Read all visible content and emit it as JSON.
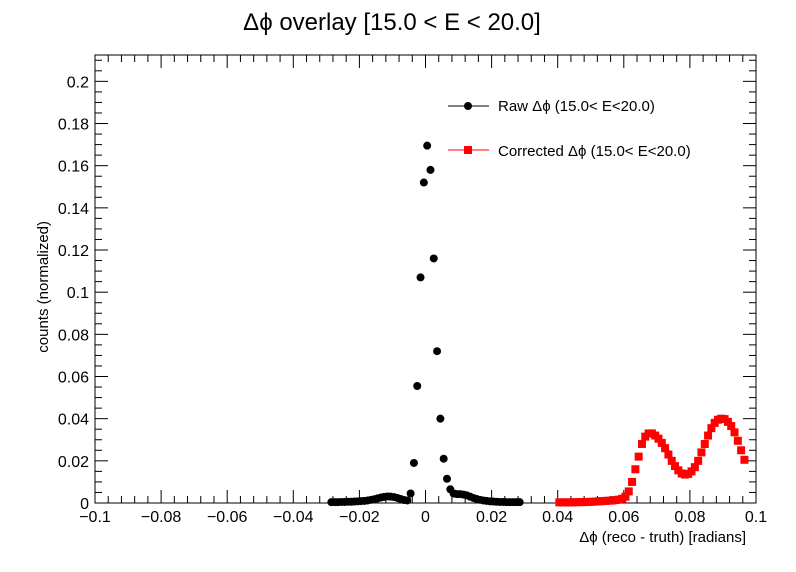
{
  "chart_data": {
    "type": "scatter",
    "title": "Δϕ overlay [15.0 < E < 20.0]",
    "xlabel": "Δϕ (reco - truth) [radians]",
    "ylabel": "counts (normalized)",
    "xlim": [
      -0.1,
      0.1
    ],
    "ylim": [
      0,
      0.2125
    ],
    "x_ticks": [
      -0.1,
      -0.08,
      -0.06,
      -0.04,
      -0.02,
      0,
      0.02,
      0.04,
      0.06,
      0.08,
      0.1
    ],
    "x_tick_labels": [
      "−0.1",
      "−0.08",
      "−0.06",
      "−0.04",
      "−0.02",
      "0",
      "0.02",
      "0.04",
      "0.06",
      "0.08",
      "0.1"
    ],
    "y_ticks": [
      0,
      0.02,
      0.04,
      0.06,
      0.08,
      0.1,
      0.12,
      0.14,
      0.16,
      0.18,
      0.2
    ],
    "y_tick_labels": [
      "0",
      "0.02",
      "0.04",
      "0.06",
      "0.08",
      "0.1",
      "0.12",
      "0.14",
      "0.16",
      "0.18",
      "0.2"
    ],
    "grid": false,
    "legend_position": "top-right",
    "series": [
      {
        "name": "Raw Δϕ (15.0< E<20.0)",
        "color": "#000000",
        "marker": "circle",
        "points": [
          [
            -0.0285,
            0.0004
          ],
          [
            -0.0275,
            0.0004
          ],
          [
            -0.0265,
            0.0004
          ],
          [
            -0.0255,
            0.0005
          ],
          [
            -0.0245,
            0.0005
          ],
          [
            -0.0235,
            0.0006
          ],
          [
            -0.0225,
            0.0006
          ],
          [
            -0.0215,
            0.0007
          ],
          [
            -0.0205,
            0.0008
          ],
          [
            -0.0195,
            0.0009
          ],
          [
            -0.0185,
            0.001
          ],
          [
            -0.0175,
            0.0012
          ],
          [
            -0.0165,
            0.0015
          ],
          [
            -0.0155,
            0.0018
          ],
          [
            -0.0145,
            0.0022
          ],
          [
            -0.0135,
            0.0026
          ],
          [
            -0.0125,
            0.0029
          ],
          [
            -0.0115,
            0.0031
          ],
          [
            -0.0105,
            0.003
          ],
          [
            -0.0095,
            0.0028
          ],
          [
            -0.0085,
            0.0024
          ],
          [
            -0.0075,
            0.0019
          ],
          [
            -0.0065,
            0.0014
          ],
          [
            -0.0055,
            0.0012
          ],
          [
            -0.0045,
            0.0045
          ],
          [
            -0.0035,
            0.019
          ],
          [
            -0.0025,
            0.0555
          ],
          [
            -0.0015,
            0.107
          ],
          [
            -0.0005,
            0.152
          ],
          [
            0.0005,
            0.1695
          ],
          [
            0.0015,
            0.158
          ],
          [
            0.0025,
            0.116
          ],
          [
            0.0035,
            0.072
          ],
          [
            0.0045,
            0.04
          ],
          [
            0.0055,
            0.021
          ],
          [
            0.0065,
            0.0115
          ],
          [
            0.0075,
            0.0065
          ],
          [
            0.0085,
            0.0045
          ],
          [
            0.0095,
            0.0042
          ],
          [
            0.0105,
            0.0042
          ],
          [
            0.0115,
            0.004
          ],
          [
            0.0125,
            0.0036
          ],
          [
            0.0135,
            0.003
          ],
          [
            0.0145,
            0.0024
          ],
          [
            0.0155,
            0.0019
          ],
          [
            0.0165,
            0.0015
          ],
          [
            0.0175,
            0.0012
          ],
          [
            0.0185,
            0.001
          ],
          [
            0.0195,
            0.0008
          ],
          [
            0.0205,
            0.0007
          ],
          [
            0.0215,
            0.0006
          ],
          [
            0.0225,
            0.0005
          ],
          [
            0.0235,
            0.0005
          ],
          [
            0.0245,
            0.0004
          ],
          [
            0.0255,
            0.0004
          ],
          [
            0.0265,
            0.0004
          ],
          [
            0.0275,
            0.0004
          ],
          [
            0.0285,
            0.0004
          ]
        ]
      },
      {
        "name": "Corrected  Δϕ (15.0< E<20.0)",
        "color": "#ff0000",
        "marker": "square",
        "points": [
          [
            0.0405,
            0.0003
          ],
          [
            0.0415,
            0.0003
          ],
          [
            0.0425,
            0.0003
          ],
          [
            0.0435,
            0.0003
          ],
          [
            0.0445,
            0.0003
          ],
          [
            0.0455,
            0.0004
          ],
          [
            0.0465,
            0.0004
          ],
          [
            0.0475,
            0.0004
          ],
          [
            0.0485,
            0.0005
          ],
          [
            0.0495,
            0.0005
          ],
          [
            0.0505,
            0.0006
          ],
          [
            0.0515,
            0.0007
          ],
          [
            0.0525,
            0.0008
          ],
          [
            0.0535,
            0.0009
          ],
          [
            0.0545,
            0.001
          ],
          [
            0.0555,
            0.0011
          ],
          [
            0.0565,
            0.0012
          ],
          [
            0.0575,
            0.0014
          ],
          [
            0.0585,
            0.0016
          ],
          [
            0.0595,
            0.002
          ],
          [
            0.0605,
            0.003
          ],
          [
            0.0615,
            0.0055
          ],
          [
            0.0625,
            0.01
          ],
          [
            0.0635,
            0.016
          ],
          [
            0.0645,
            0.022
          ],
          [
            0.0655,
            0.028
          ],
          [
            0.0665,
            0.0315
          ],
          [
            0.0675,
            0.033
          ],
          [
            0.0685,
            0.033
          ],
          [
            0.0695,
            0.032
          ],
          [
            0.0705,
            0.0305
          ],
          [
            0.0715,
            0.0285
          ],
          [
            0.0725,
            0.026
          ],
          [
            0.0735,
            0.023
          ],
          [
            0.0745,
            0.02
          ],
          [
            0.0755,
            0.0175
          ],
          [
            0.0765,
            0.0155
          ],
          [
            0.0775,
            0.014
          ],
          [
            0.0785,
            0.0135
          ],
          [
            0.0795,
            0.0138
          ],
          [
            0.0805,
            0.015
          ],
          [
            0.0815,
            0.017
          ],
          [
            0.0825,
            0.02
          ],
          [
            0.0835,
            0.024
          ],
          [
            0.0845,
            0.028
          ],
          [
            0.0855,
            0.032
          ],
          [
            0.0865,
            0.0355
          ],
          [
            0.0875,
            0.038
          ],
          [
            0.0885,
            0.0395
          ],
          [
            0.0895,
            0.04
          ],
          [
            0.0905,
            0.0398
          ],
          [
            0.0915,
            0.0385
          ],
          [
            0.0925,
            0.0365
          ],
          [
            0.0935,
            0.0335
          ],
          [
            0.0945,
            0.0295
          ],
          [
            0.0955,
            0.025
          ],
          [
            0.0965,
            0.0205
          ]
        ]
      }
    ]
  }
}
